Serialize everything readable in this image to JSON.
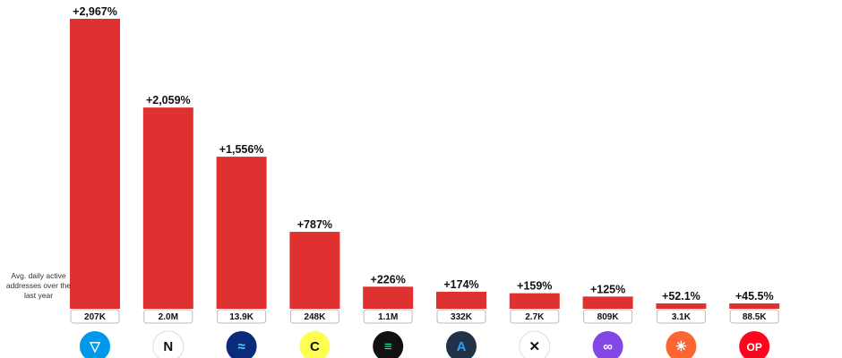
{
  "chart_data": {
    "type": "bar",
    "categories": [
      "TON",
      "NEAR",
      "Injective",
      "Celo",
      "Solana",
      "Arbitrum",
      "Axelar",
      "Polygon",
      "Stacks",
      "Optimism"
    ],
    "values": [
      2967,
      2059,
      1556,
      787,
      226,
      174,
      159,
      125,
      52.1,
      45.5
    ],
    "data_labels": [
      "+2,967%",
      "+2,059%",
      "+1,556%",
      "+787%",
      "+226%",
      "+174%",
      "+159%",
      "+125%",
      "+52.1%",
      "+45.5%"
    ],
    "avg_daily_active_addresses": [
      "207K",
      "2.0M",
      "13.9K",
      "248K",
      "1.1M",
      "332K",
      "2.7K",
      "809K",
      "3.1K",
      "88.5K"
    ],
    "row_label": "Avg. daily active addresses over the last year",
    "ylim": [
      0,
      3050
    ],
    "grid": false,
    "legend": "none",
    "bar_color": "#e03131",
    "icons": [
      {
        "name": "ton-icon",
        "bg": "#0098ea",
        "fg": "#ffffff",
        "glyph": "▽"
      },
      {
        "name": "near-icon",
        "bg": "#ffffff",
        "fg": "#111111",
        "glyph": "N"
      },
      {
        "name": "injective-icon",
        "bg": "#0a2a7a",
        "fg": "#4fd1ff",
        "glyph": "≈"
      },
      {
        "name": "celo-icon",
        "bg": "#fcff52",
        "fg": "#111111",
        "glyph": "C"
      },
      {
        "name": "solana-icon",
        "bg": "#111111",
        "fg": "#14f195",
        "glyph": "≡"
      },
      {
        "name": "arbitrum-icon",
        "bg": "#213147",
        "fg": "#28a0f0",
        "glyph": "A"
      },
      {
        "name": "axelar-icon",
        "bg": "#ffffff",
        "fg": "#111111",
        "glyph": "✕"
      },
      {
        "name": "polygon-icon",
        "bg": "#8247e5",
        "fg": "#ffffff",
        "glyph": "∞"
      },
      {
        "name": "stacks-icon",
        "bg": "#fc6432",
        "fg": "#ffffff",
        "glyph": "✳"
      },
      {
        "name": "optimism-icon",
        "bg": "#ff0420",
        "fg": "#ffffff",
        "glyph": "OP"
      }
    ]
  }
}
